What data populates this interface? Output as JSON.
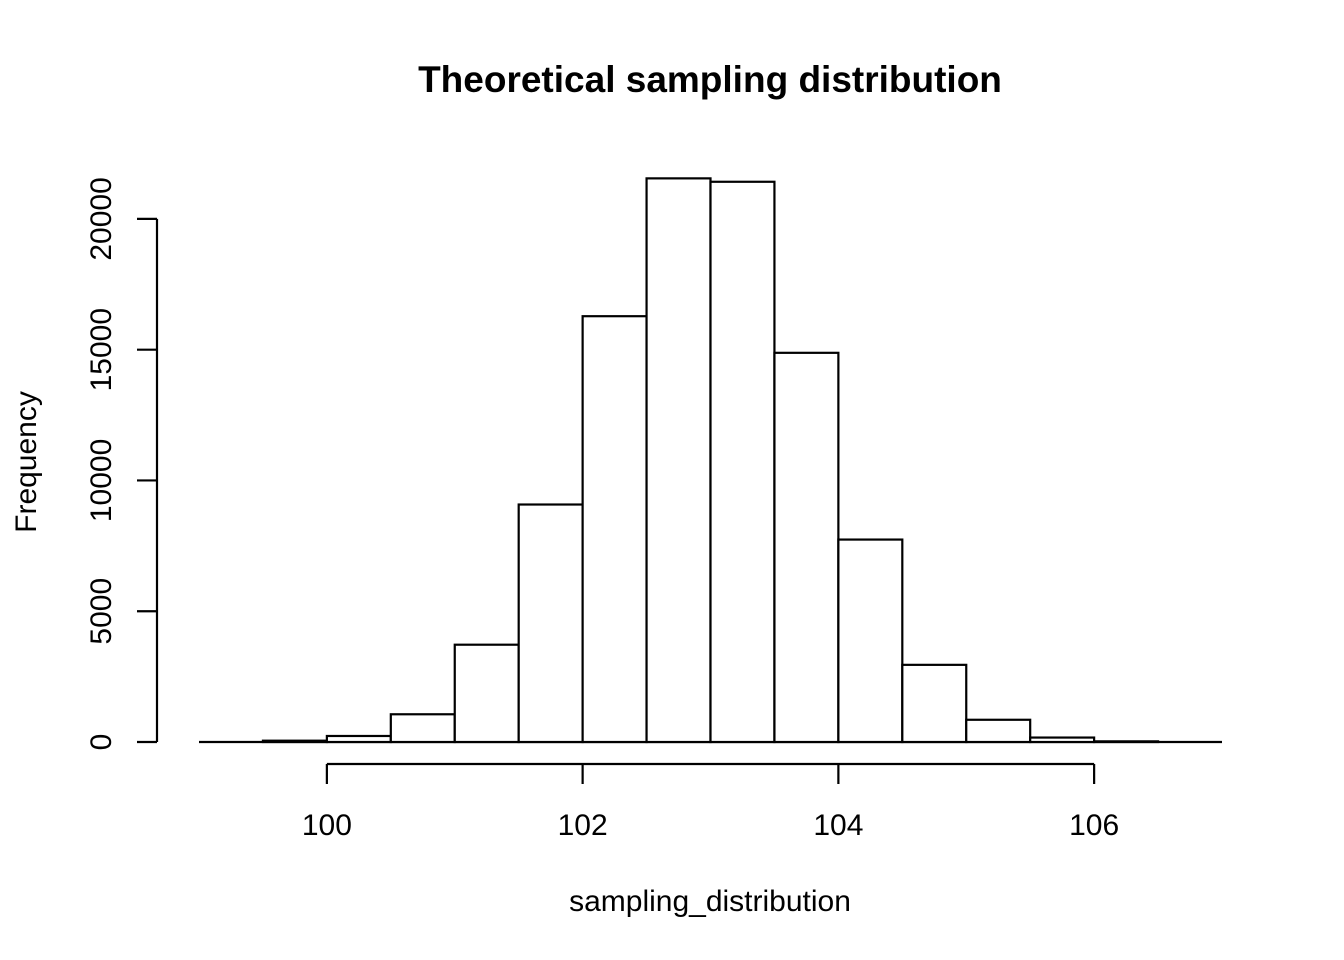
{
  "chart_data": {
    "type": "histogram",
    "title": "Theoretical sampling distribution",
    "xlabel": "sampling_distribution",
    "ylabel": "Frequency",
    "bin_edges": [
      99.5,
      100,
      100.5,
      101,
      101.5,
      102,
      102.5,
      103,
      103.5,
      104,
      104.5,
      105,
      105.5,
      106,
      106.5
    ],
    "values": [
      50,
      230,
      1060,
      3720,
      9080,
      16280,
      21550,
      21420,
      14880,
      7740,
      2950,
      850,
      170,
      25
    ],
    "xlim": [
      99,
      107
    ],
    "ylim": [
      0,
      22000
    ],
    "xticks": [
      100,
      102,
      104,
      106
    ],
    "yticks": [
      0,
      5000,
      10000,
      15000,
      20000
    ],
    "xtick_labels": [
      "100",
      "102",
      "104",
      "106"
    ],
    "ytick_labels": [
      "0",
      "5000",
      "10000",
      "15000",
      "20000"
    ],
    "grid": false,
    "colors": {
      "bar_fill": "#ffffff",
      "bar_stroke": "#000000"
    }
  }
}
